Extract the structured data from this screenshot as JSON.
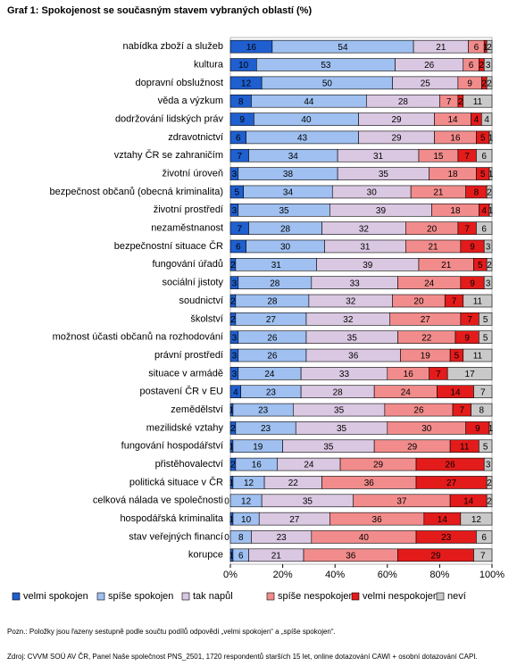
{
  "chart_data": {
    "type": "stacked-bar-horizontal",
    "title": "Graf 1: Spokojenost se současným stavem vybraných oblastí (%)",
    "categories": [
      "nabídka zboží a služeb",
      "kultura",
      "dopravní obslužnost",
      "věda a výzkum",
      "dodržování lidských práv",
      "zdravotnictví",
      "vztahy ČR se zahraničím",
      "životní úroveň",
      "bezpečnost občanů (obecná kriminalita)",
      "životní prostředí",
      "nezaměstnanost",
      "bezpečnostní situace ČR",
      "fungování úřadů",
      "sociální jistoty",
      "soudnictví",
      "školství",
      "možnost účasti občanů na rozhodování",
      "právní prostředí",
      "situace v armádě",
      "postavení ČR v EU",
      "zemědělství",
      "mezilidské vztahy",
      "fungování hospodářství",
      "přistěhovalectví",
      "politická situace v ČR",
      "celková nálada ve společnosti",
      "hospodářská kriminalita",
      "stav veřejných financí",
      "korupce"
    ],
    "series": [
      {
        "name": "velmi spokojen",
        "color": "#1f5fd0",
        "values": [
          16,
          10,
          12,
          8,
          9,
          6,
          7,
          3,
          5,
          3,
          7,
          6,
          2,
          3,
          2,
          2,
          3,
          3,
          3,
          4,
          1,
          2,
          1,
          2,
          1,
          0,
          1,
          0,
          1
        ]
      },
      {
        "name": "spíše spokojen",
        "color": "#9fc0f0",
        "values": [
          54,
          53,
          50,
          44,
          40,
          43,
          34,
          38,
          34,
          35,
          28,
          30,
          31,
          28,
          28,
          27,
          26,
          26,
          24,
          23,
          23,
          23,
          19,
          16,
          12,
          12,
          10,
          8,
          6
        ]
      },
      {
        "name": "tak napůl",
        "color": "#dac8e2",
        "values": [
          21,
          26,
          25,
          28,
          29,
          29,
          31,
          35,
          30,
          39,
          32,
          31,
          39,
          33,
          32,
          32,
          35,
          36,
          33,
          28,
          35,
          35,
          35,
          24,
          22,
          35,
          27,
          23,
          21
        ]
      },
      {
        "name": "spíše nespokojen",
        "color": "#f28c8c",
        "values": [
          6,
          6,
          9,
          7,
          14,
          16,
          15,
          18,
          21,
          18,
          20,
          21,
          21,
          24,
          20,
          27,
          22,
          19,
          16,
          24,
          26,
          30,
          29,
          29,
          36,
          37,
          36,
          40,
          36
        ]
      },
      {
        "name": "velmi nespokojen",
        "color": "#e41b1b",
        "values": [
          1,
          2,
          2,
          2,
          4,
          5,
          7,
          5,
          8,
          4,
          7,
          9,
          5,
          9,
          7,
          7,
          9,
          5,
          7,
          14,
          7,
          9,
          11,
          26,
          27,
          14,
          14,
          23,
          29
        ]
      },
      {
        "name": "neví",
        "color": "#c9c9c9",
        "values": [
          2,
          3,
          2,
          11,
          4,
          1,
          6,
          1,
          2,
          1,
          6,
          3,
          2,
          3,
          11,
          5,
          5,
          11,
          17,
          7,
          8,
          1,
          5,
          3,
          2,
          2,
          12,
          6,
          7
        ]
      }
    ],
    "xlim": [
      0,
      100
    ],
    "xticks": [
      {
        "value": 0,
        "label": "0%"
      },
      {
        "value": 20,
        "label": "20%"
      },
      {
        "value": 40,
        "label": "40%"
      },
      {
        "value": 60,
        "label": "60%"
      },
      {
        "value": 80,
        "label": "80%"
      },
      {
        "value": 100,
        "label": "100%"
      }
    ],
    "notes": [
      "Pozn.: Položky jsou řazeny sestupně podle součtu podílů odpovědí „velmi spokojen“ a „spíše spokojen“.",
      "Zdroj: CVVM SOÚ AV ČR, Panel Naše společnost PNS_2501, 1720 respondentů starších 15 let, online dotazování CAWI + osobní dotazování CAPI."
    ]
  }
}
